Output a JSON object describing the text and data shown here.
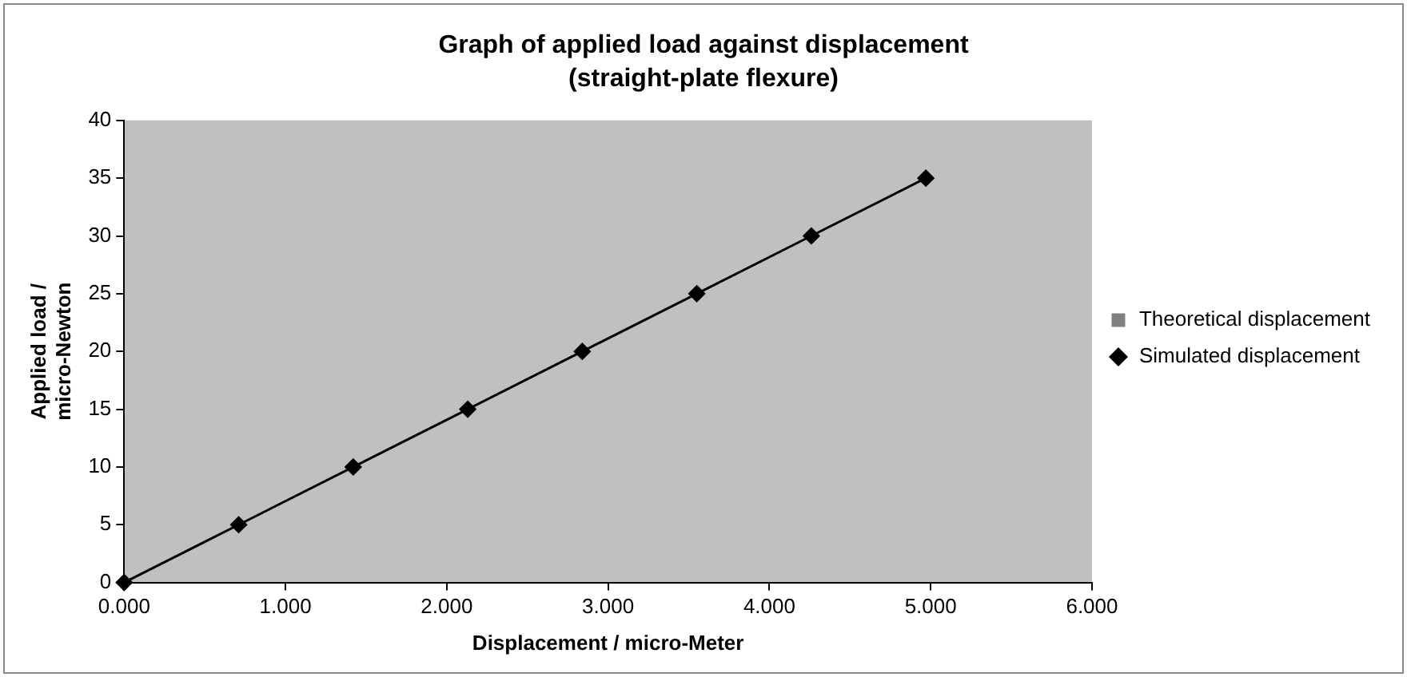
{
  "chart_data": {
    "type": "line",
    "title": "Graph of applied load against displacement",
    "subtitle": "(straight-plate flexure)",
    "xlabel": "Displacement / micro-Meter",
    "ylabel": "Applied load / micro-Newton",
    "x": [
      0,
      0.71,
      1.42,
      2.13,
      2.84,
      3.55,
      4.26,
      4.97
    ],
    "series": [
      {
        "name": "Theoretical displacement",
        "color": "#808080",
        "marker": "square",
        "values": [
          null,
          null,
          null,
          null,
          null,
          null,
          null,
          null
        ]
      },
      {
        "name": "Simulated displacement",
        "color": "#000000",
        "marker": "diamond",
        "values": [
          0,
          5,
          10,
          15,
          20,
          25,
          30,
          35
        ]
      }
    ],
    "xlim": [
      0,
      6
    ],
    "xticks": [
      {
        "value": 0,
        "label": "0.000"
      },
      {
        "value": 1,
        "label": "1.000"
      },
      {
        "value": 2,
        "label": "2.000"
      },
      {
        "value": 3,
        "label": "3.000"
      },
      {
        "value": 4,
        "label": "4.000"
      },
      {
        "value": 5,
        "label": "5.000"
      },
      {
        "value": 6,
        "label": "6.000"
      }
    ],
    "ylim": [
      0,
      40
    ],
    "yticks": [
      0,
      5,
      10,
      15,
      20,
      25,
      30,
      35,
      40
    ],
    "grid": false,
    "legend": "right",
    "line_style": "solid"
  }
}
